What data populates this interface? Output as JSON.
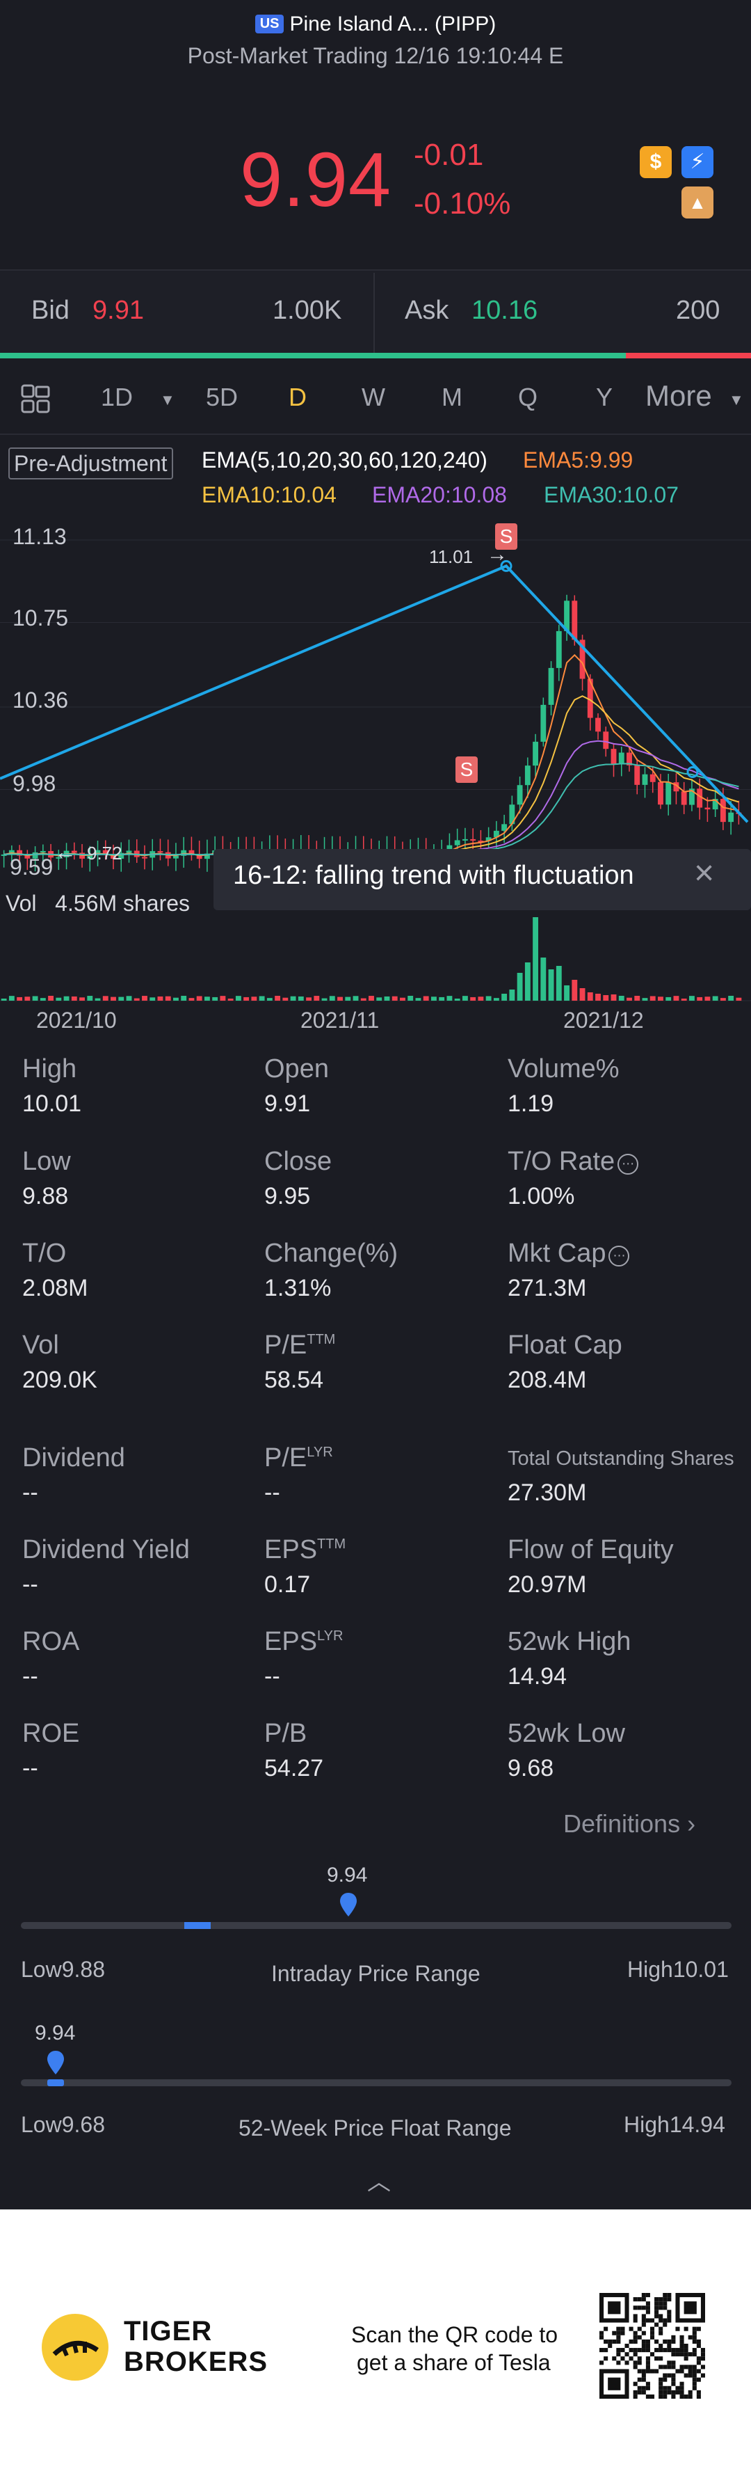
{
  "header": {
    "market_badge": "US",
    "title": "Pine Island A... (PIPP)",
    "subtitle": "Post-Market Trading 12/16 19:10:44 E",
    "price": "9.94",
    "change": "-0.01",
    "change_pct": "-0.10%",
    "icons": [
      "dollar-icon",
      "flash-icon",
      "education-icon"
    ],
    "colors": {
      "down": "#f2414f",
      "up": "#2ec08b"
    }
  },
  "quote": {
    "bid_label": "Bid",
    "bid_price": "9.91",
    "bid_size": "1.00K",
    "ask_label": "Ask",
    "ask_price": "10.16",
    "ask_size": "200",
    "buy_ratio": 0.833
  },
  "tabs": {
    "items": [
      "1D",
      "5D",
      "D",
      "W",
      "M",
      "Q",
      "Y"
    ],
    "active": "D",
    "more_label": "More"
  },
  "chart": {
    "pre_adjustment": "Pre-Adjustment",
    "ema_legend": "EMA(5,10,20,30,60,120,240)",
    "ema5": "EMA5:9.99",
    "ema10": "EMA10:10.04",
    "ema20": "EMA20:10.08",
    "ema30": "EMA30:10.07",
    "y_ticks": [
      "11.13",
      "10.75",
      "10.36",
      "9.98",
      "9.59"
    ],
    "high_marker": "11.01",
    "low_marker": "9.72",
    "signal_label": "S",
    "trend_callout": "16-12: falling trend with fluctuation",
    "vol_label": "Vol",
    "vol_value": "4.56M shares",
    "x_ticks": [
      "2021/10",
      "2021/11",
      "2021/12"
    ],
    "colors": {
      "ema5": "#ff8a3d",
      "ema10": "#f5c242",
      "ema20": "#b06ae8",
      "ema30": "#3fbfb0",
      "trend": "#1fa7e8"
    }
  },
  "chart_data": {
    "type": "candlestick",
    "ylim": [
      9.59,
      11.13
    ],
    "y_ticks": [
      11.13,
      10.75,
      10.36,
      9.98,
      9.59
    ],
    "x_ticks": [
      "2021/10",
      "2021/11",
      "2021/12"
    ],
    "annotations": [
      {
        "label": "11.01",
        "kind": "period-high"
      },
      {
        "label": "9.72",
        "kind": "period-low"
      },
      {
        "label": "S",
        "kind": "signal"
      },
      {
        "label": "S",
        "kind": "signal"
      }
    ],
    "trend_text": "16-12: falling trend with fluctuation"
  },
  "stats": [
    {
      "label": "High",
      "value": "10.01"
    },
    {
      "label": "Open",
      "value": "9.91"
    },
    {
      "label": "Volume%",
      "value": "1.19"
    },
    {
      "label": "Low",
      "value": "9.88"
    },
    {
      "label": "Close",
      "value": "9.95"
    },
    {
      "label": "T/O Rate",
      "value": "1.00%"
    },
    {
      "label": "T/O",
      "value": "2.08M"
    },
    {
      "label": "Change(%)",
      "value": "1.31%"
    },
    {
      "label": "Mkt Cap",
      "value": "271.3M"
    },
    {
      "label": "Vol",
      "value": "209.0K"
    },
    {
      "label": "P/E",
      "sup": "TTM",
      "value": "58.54"
    },
    {
      "label": "Float Cap",
      "value": "208.4M"
    },
    {
      "label": "Dividend",
      "value": "--"
    },
    {
      "label": "P/E",
      "sup": "LYR",
      "value": "--"
    },
    {
      "label": "Total Outstanding Shares",
      "value": "27.30M"
    },
    {
      "label": "Dividend Yield",
      "value": "--"
    },
    {
      "label": "EPS",
      "sup": "TTM",
      "value": "0.17"
    },
    {
      "label": "Flow of Equity",
      "value": "20.97M"
    },
    {
      "label": "ROA",
      "value": "--"
    },
    {
      "label": "EPS",
      "sup": "LYR",
      "value": "--"
    },
    {
      "label": "52wk High",
      "value": "14.94"
    },
    {
      "label": "ROE",
      "value": "--"
    },
    {
      "label": "P/B",
      "value": "54.27"
    },
    {
      "label": "52wk Low",
      "value": "9.68"
    }
  ],
  "definitions_label": "Definitions",
  "intraday_range": {
    "title": "Intraday Price Range",
    "low_label": "Low9.88",
    "high_label": "High10.01",
    "current": "9.94",
    "low": 9.88,
    "high": 10.01,
    "value": 9.94,
    "open": 9.91
  },
  "week52_range": {
    "title": "52-Week Price Float Range",
    "low_label": "Low9.68",
    "high_label": "High14.94",
    "current": "9.94",
    "low": 9.68,
    "high": 14.94,
    "value": 9.94
  },
  "footer": {
    "brand_line1": "TIGER",
    "brand_line2": "BROKERS",
    "scan_line1": "Scan the QR code to",
    "scan_line2": "get a share of Tesla"
  }
}
